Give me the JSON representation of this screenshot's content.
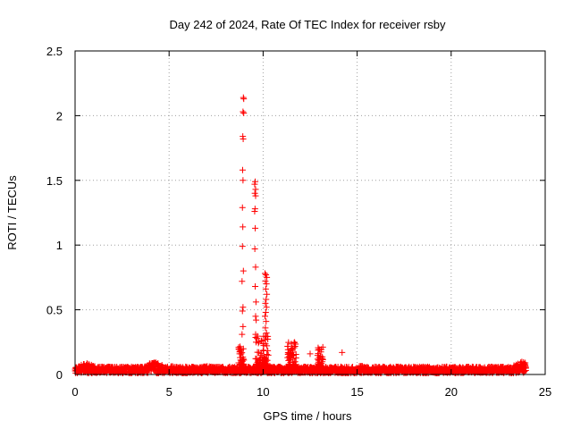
{
  "chart_data": {
    "type": "scatter",
    "title": "Day 242 of 2024, Rate Of TEC Index for receiver rsby",
    "xlabel": "GPS time / hours",
    "ylabel": "ROTI / TECUs",
    "xlim": [
      0,
      25
    ],
    "ylim": [
      0,
      2.5
    ],
    "xticks": [
      "0",
      "5",
      "10",
      "15",
      "20",
      "25"
    ],
    "yticks": [
      "0",
      "0.5",
      "1",
      "1.5",
      "2",
      "2.5"
    ],
    "grid": true,
    "marker": "plus",
    "color": "#ff0000",
    "baseline": {
      "x_range": [
        0,
        24
      ],
      "typical_low": 0.01,
      "typical_high": 0.06,
      "bumps": [
        {
          "x": 0.6,
          "y": 0.09
        },
        {
          "x": 4.2,
          "y": 0.1
        },
        {
          "x": 5.2,
          "y": 0.07
        },
        {
          "x": 7.0,
          "y": 0.07
        },
        {
          "x": 15.2,
          "y": 0.07
        },
        {
          "x": 23.8,
          "y": 0.1
        }
      ]
    },
    "clusters": [
      {
        "x_range": [
          8.7,
          9.0
        ],
        "y_max": 0.22
      },
      {
        "x_range": [
          9.6,
          10.3
        ],
        "y_max": 0.3
      },
      {
        "x_range": [
          11.3,
          11.8
        ],
        "y_max": 0.25
      },
      {
        "x_range": [
          12.9,
          13.2
        ],
        "y_max": 0.22
      }
    ],
    "series": [
      {
        "points": [
          [
            8.95,
            2.14
          ],
          [
            8.97,
            2.13
          ],
          [
            8.93,
            2.03
          ],
          [
            8.97,
            2.02
          ],
          [
            8.92,
            1.84
          ],
          [
            8.94,
            1.82
          ],
          [
            8.91,
            1.58
          ],
          [
            8.93,
            1.5
          ],
          [
            8.9,
            1.29
          ],
          [
            8.92,
            1.14
          ],
          [
            8.9,
            0.99
          ],
          [
            8.95,
            0.8
          ],
          [
            8.88,
            0.72
          ],
          [
            8.93,
            0.52
          ],
          [
            8.9,
            0.49
          ],
          [
            8.93,
            0.37
          ],
          [
            8.88,
            0.31
          ],
          [
            9.58,
            1.49
          ],
          [
            9.55,
            1.47
          ],
          [
            9.6,
            1.43
          ],
          [
            9.56,
            1.4
          ],
          [
            9.6,
            1.38
          ],
          [
            9.57,
            1.28
          ],
          [
            9.55,
            1.26
          ],
          [
            9.58,
            1.13
          ],
          [
            9.56,
            0.97
          ],
          [
            9.6,
            0.83
          ],
          [
            9.58,
            0.68
          ],
          [
            9.62,
            0.56
          ],
          [
            9.6,
            0.45
          ],
          [
            9.63,
            0.42
          ],
          [
            9.6,
            0.31
          ],
          [
            10.1,
            0.78
          ],
          [
            10.15,
            0.77
          ],
          [
            10.2,
            0.75
          ],
          [
            10.12,
            0.72
          ],
          [
            10.18,
            0.7
          ],
          [
            10.14,
            0.66
          ],
          [
            10.2,
            0.62
          ],
          [
            10.16,
            0.58
          ],
          [
            10.12,
            0.55
          ],
          [
            10.18,
            0.52
          ],
          [
            10.14,
            0.48
          ],
          [
            10.1,
            0.45
          ],
          [
            10.16,
            0.41
          ],
          [
            10.12,
            0.36
          ],
          [
            10.18,
            0.32
          ],
          [
            12.5,
            0.16
          ],
          [
            14.2,
            0.17
          ]
        ]
      }
    ]
  }
}
